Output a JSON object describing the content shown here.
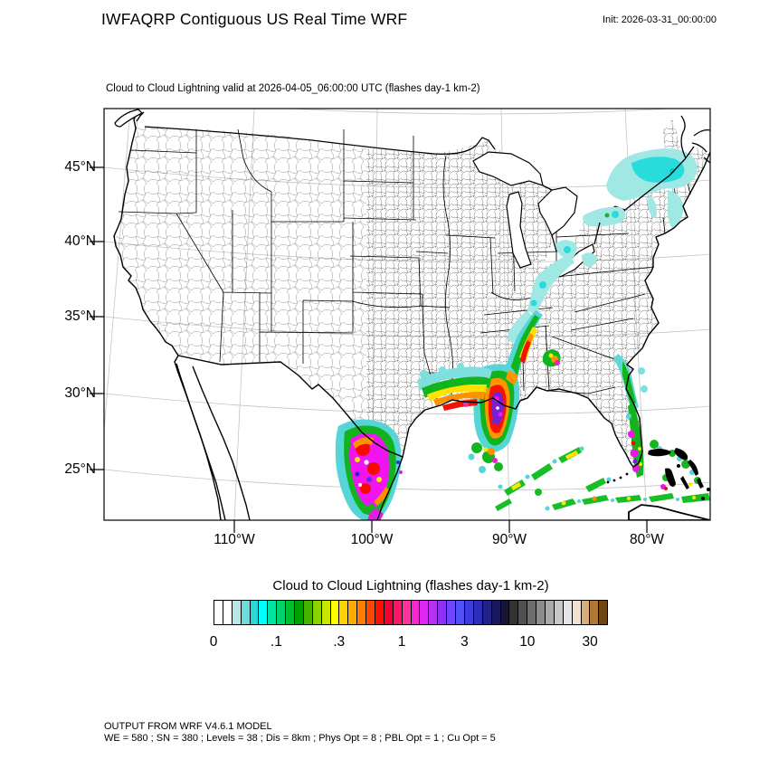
{
  "header": {
    "title": "IWFAQRP Contiguous US Real Time WRF",
    "init_label": "Init: 2026-03-31_00:00:00"
  },
  "map": {
    "subtitle": "Cloud to Cloud Lightning valid at 2026-04-05_06:00:00 UTC   (flashes day-1 km-2)",
    "lat_ticks": [
      "45°N",
      "40°N",
      "35°N",
      "30°N",
      "25°N"
    ],
    "lon_ticks": [
      "110°W",
      "100°W",
      "90°W",
      "80°W"
    ]
  },
  "colorbar": {
    "title": "Cloud to Cloud Lightning  (flashes day-1 km-2)",
    "tick_labels": [
      "0",
      ".1",
      ".3",
      "1",
      "3",
      "10",
      "30"
    ],
    "colors": [
      "#FFFFFF",
      "#FFFFFF",
      "#B9E8E8",
      "#6EDCDC",
      "#28D7D7",
      "#00FFFF",
      "#00E6A0",
      "#00D26E",
      "#00BE32",
      "#00A000",
      "#46B400",
      "#8CD200",
      "#C8E600",
      "#FFFF00",
      "#FFD200",
      "#FFAA00",
      "#FF7D00",
      "#FF4600",
      "#FF0F00",
      "#F00032",
      "#FF1469",
      "#FF32A0",
      "#F728D2",
      "#DC28F0",
      "#B432F0",
      "#8C32F5",
      "#6E46FF",
      "#5050F5",
      "#3C3CDC",
      "#2D2DB9",
      "#232387",
      "#19195F",
      "#141437",
      "#323232",
      "#505050",
      "#6E6E6E",
      "#8C8C8C",
      "#AAAAAA",
      "#C8C8C8",
      "#E6E6E6",
      "#F0E1CD",
      "#D7AF7D",
      "#AF7837",
      "#6E4614"
    ]
  },
  "footer": {
    "line1": "OUTPUT FROM WRF V4.6.1 MODEL",
    "line2": "WE = 580 ; SN = 380 ; Levels = 38 ; Dis = 8km ; Phys Opt = 8 ; PBL Opt = 1 ; Cu Opt = 5"
  }
}
